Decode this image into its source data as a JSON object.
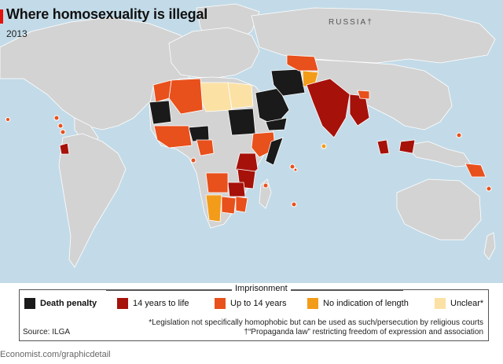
{
  "header": {
    "title": "Where homosexuality is illegal",
    "year": "2013"
  },
  "map_labels": {
    "russia": "RUSSIA†"
  },
  "legend": {
    "heading": "Imprisonment",
    "items": [
      {
        "label": "Death penalty",
        "color": "#1a1a1a",
        "bold": true
      },
      {
        "label": "14 years to life",
        "color": "#a6110a"
      },
      {
        "label": "Up to 14 years",
        "color": "#e8501c"
      },
      {
        "label": "No indication of length",
        "color": "#f39c1a"
      },
      {
        "label": "Unclear*",
        "color": "#fbe1a4"
      }
    ],
    "note1": "*Legislation not specifically homophobic but can be used as such/persecution by religious courts",
    "note2": "†“Propaganda law” restricting freedom of expression and association",
    "source": "Source: ILGA"
  },
  "footer": {
    "text": "Economist.com/graphicdetail"
  },
  "colors": {
    "ocean": "#c3dbe8",
    "land": "#d3d3d3",
    "border": "#ffffff",
    "accent": "#e3120b"
  }
}
